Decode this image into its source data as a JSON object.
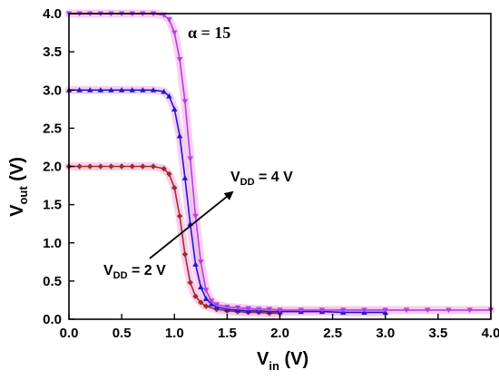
{
  "chart_data": {
    "type": "line",
    "title": "",
    "xlabel": {
      "main": "V",
      "sub": "in",
      "unit": " (V)"
    },
    "ylabel": {
      "main": "V",
      "sub": "out",
      "unit": " (V)"
    },
    "xlim": [
      0.0,
      4.0
    ],
    "ylim": [
      0.0,
      4.0
    ],
    "xticks": [
      "0.0",
      "0.5",
      "1.0",
      "1.5",
      "2.0",
      "2.5",
      "3.0",
      "3.5",
      "4.0"
    ],
    "yticks": [
      "0.0",
      "0.5",
      "1.0",
      "1.5",
      "2.0",
      "2.5",
      "3.0",
      "3.5",
      "4.0"
    ],
    "grid": false,
    "annotations": {
      "alpha": "α = 15",
      "vdd_high": {
        "main": "V",
        "sub": "DD",
        "text": " = 4 V"
      },
      "vdd_low": {
        "main": "V",
        "sub": "DD",
        "text": " = 2 V"
      }
    },
    "series": [
      {
        "color": "#a0301a",
        "marker": "diamond",
        "x": [
          0.0,
          0.1,
          0.2,
          0.3,
          0.4,
          0.5,
          0.6,
          0.7,
          0.8,
          0.9,
          0.95,
          1.0,
          1.05,
          1.1,
          1.15,
          1.2,
          1.25,
          1.3,
          1.4,
          1.5,
          1.6,
          1.7,
          1.8,
          1.9,
          2.0
        ],
        "y": [
          2.0,
          2.0,
          2.0,
          2.0,
          2.0,
          2.0,
          2.0,
          2.0,
          2.0,
          1.97,
          1.9,
          1.72,
          1.35,
          0.85,
          0.48,
          0.3,
          0.22,
          0.17,
          0.13,
          0.11,
          0.1,
          0.09,
          0.09,
          0.08,
          0.08
        ]
      },
      {
        "color": "#1a1acc",
        "marker": "triangle-up",
        "x": [
          0.0,
          0.1,
          0.2,
          0.3,
          0.4,
          0.5,
          0.6,
          0.7,
          0.8,
          0.9,
          0.95,
          1.0,
          1.05,
          1.1,
          1.15,
          1.2,
          1.25,
          1.3,
          1.35,
          1.4,
          1.5,
          1.6,
          1.7,
          1.8,
          1.9,
          2.0,
          2.2,
          2.4,
          2.6,
          2.8,
          3.0
        ],
        "y": [
          3.0,
          3.0,
          3.0,
          3.0,
          3.0,
          3.0,
          3.0,
          3.0,
          3.0,
          2.98,
          2.92,
          2.75,
          2.4,
          1.85,
          1.25,
          0.72,
          0.42,
          0.27,
          0.2,
          0.16,
          0.13,
          0.12,
          0.11,
          0.11,
          0.1,
          0.1,
          0.1,
          0.1,
          0.09,
          0.09,
          0.09
        ]
      },
      {
        "color": "#b040e0",
        "marker": "triangle-down",
        "x": [
          0.0,
          0.1,
          0.2,
          0.3,
          0.4,
          0.5,
          0.6,
          0.7,
          0.8,
          0.9,
          0.95,
          1.0,
          1.05,
          1.1,
          1.15,
          1.2,
          1.25,
          1.3,
          1.35,
          1.4,
          1.5,
          1.6,
          1.7,
          1.8,
          1.9,
          2.0,
          2.2,
          2.4,
          2.6,
          2.8,
          3.0,
          3.2,
          3.4,
          3.6,
          3.8,
          4.0
        ],
        "y": [
          4.0,
          4.0,
          4.0,
          4.0,
          4.0,
          4.0,
          4.0,
          4.0,
          4.0,
          3.98,
          3.92,
          3.75,
          3.4,
          2.85,
          2.1,
          1.35,
          0.75,
          0.38,
          0.24,
          0.19,
          0.16,
          0.15,
          0.14,
          0.13,
          0.13,
          0.12,
          0.12,
          0.12,
          0.12,
          0.12,
          0.12,
          0.12,
          0.12,
          0.12,
          0.12,
          0.12
        ]
      }
    ]
  }
}
